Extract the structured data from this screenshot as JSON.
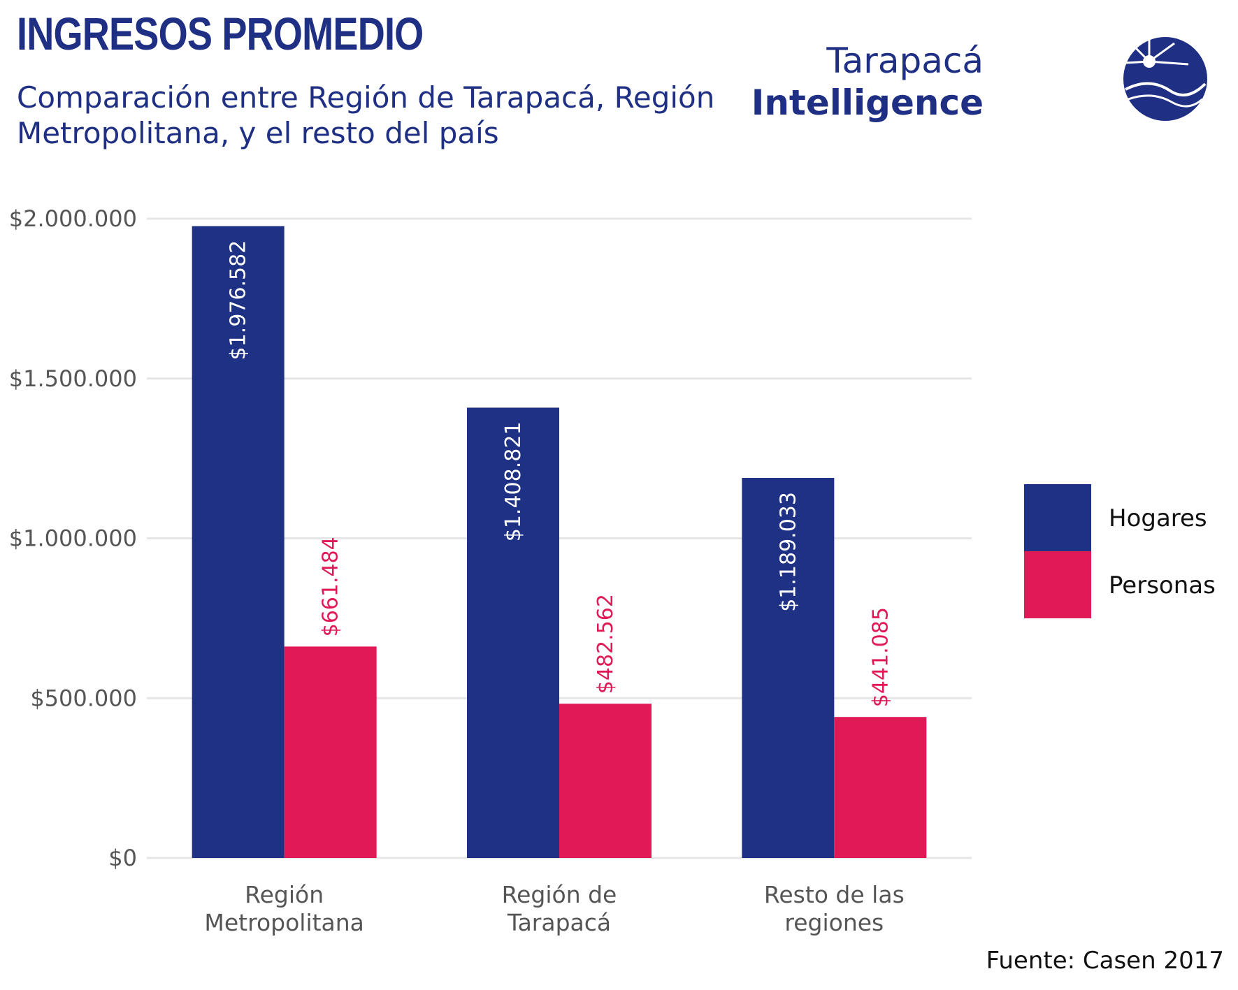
{
  "header": {
    "title": "INGRESOS PROMEDIO",
    "subtitle": "Comparación entre Región de Tarapacá, Región Metropolitana, y el resto del país"
  },
  "logo": {
    "line1": "Tarapacá",
    "line2": "Intelligence",
    "icon": "globe-sun-logo-icon"
  },
  "source": "Fuente: Casen 2017",
  "colors": {
    "hogares": "#1e3184",
    "personas": "#e01a56",
    "text": "#1e2f84",
    "grid": "#e6e6e6"
  },
  "chart_data": {
    "type": "bar",
    "categories": [
      [
        "Región",
        "Metropolitana"
      ],
      [
        "Región de",
        "Tarapacá"
      ],
      [
        "Resto de las",
        "regiones"
      ]
    ],
    "series": [
      {
        "name": "Hogares",
        "values": [
          1976582,
          1408821,
          1189033
        ],
        "labels": [
          "$1.976.582",
          "$1.408.821",
          "$1.189.033"
        ]
      },
      {
        "name": "Personas",
        "values": [
          661484,
          482562,
          441085
        ],
        "labels": [
          "$661.484",
          "$482.562",
          "$441.085"
        ]
      }
    ],
    "ylim": [
      0,
      2000000
    ],
    "yticks": [
      0,
      500000,
      1000000,
      1500000,
      2000000
    ],
    "ytick_labels": [
      "$0",
      "$500.000",
      "$1.000.000",
      "$1.500.000",
      "$2.000.000"
    ],
    "grid": true,
    "legend_position": "right"
  }
}
